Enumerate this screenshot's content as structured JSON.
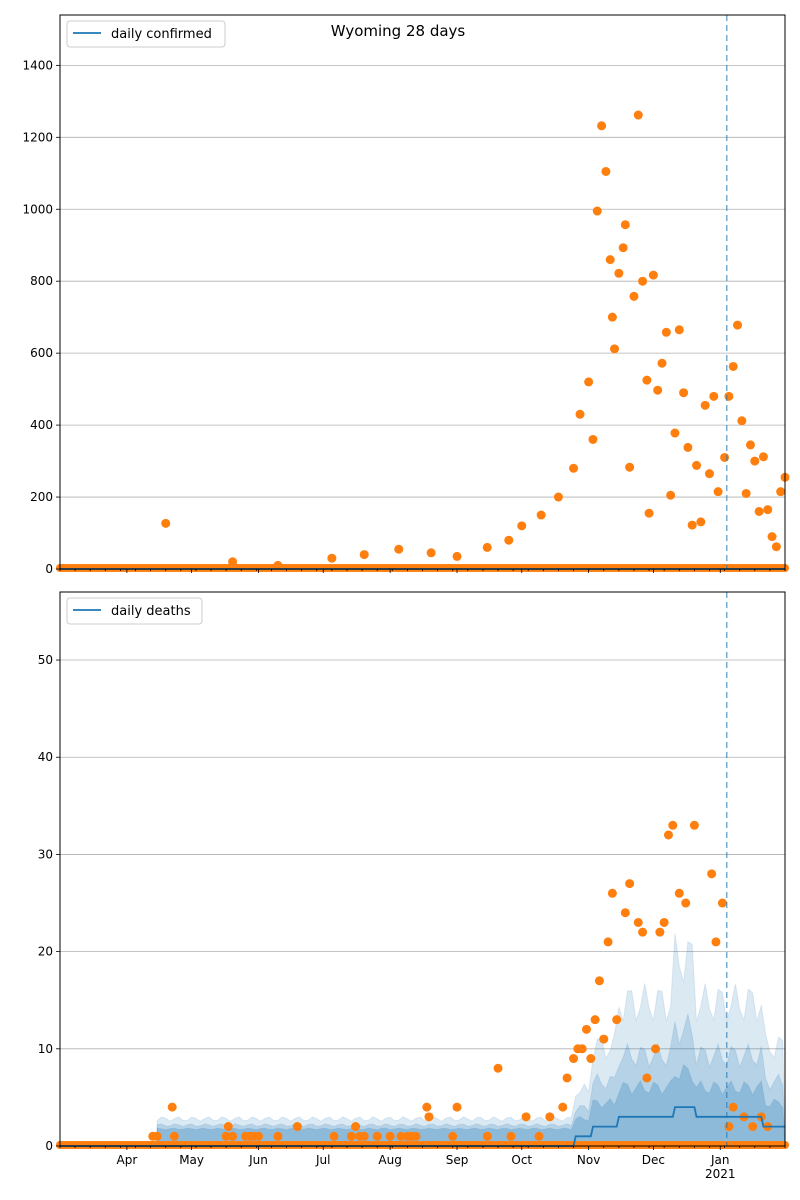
{
  "chart_data": [
    {
      "type": "scatter",
      "title": "Wyoming 28 days",
      "legend": {
        "placement": "top-left",
        "entries": [
          "daily confirmed"
        ]
      },
      "series": [
        {
          "name": "daily confirmed",
          "kind": "line",
          "color": "#1f77b4",
          "x": [
            "2020-03-01",
            "2021-01-31"
          ],
          "values": [
            0,
            0
          ]
        },
        {
          "kind": "scatter",
          "color": "#ff7f0e",
          "x": [
            "2020-04-19",
            "2020-05-20",
            "2020-06-10",
            "2020-07-05",
            "2020-07-20",
            "2020-08-05",
            "2020-08-20",
            "2020-09-01",
            "2020-09-15",
            "2020-09-25",
            "2020-10-01",
            "2020-10-10",
            "2020-10-18",
            "2020-10-25",
            "2020-10-28",
            "2020-11-01",
            "2020-11-03",
            "2020-11-05",
            "2020-11-07",
            "2020-11-09",
            "2020-11-11",
            "2020-11-12",
            "2020-11-13",
            "2020-11-15",
            "2020-11-17",
            "2020-11-18",
            "2020-11-20",
            "2020-11-22",
            "2020-11-24",
            "2020-11-26",
            "2020-11-28",
            "2020-11-29",
            "2020-12-01",
            "2020-12-03",
            "2020-12-05",
            "2020-12-07",
            "2020-12-09",
            "2020-12-11",
            "2020-12-13",
            "2020-12-15",
            "2020-12-17",
            "2020-12-19",
            "2020-12-21",
            "2020-12-23",
            "2020-12-25",
            "2020-12-27",
            "2020-12-29",
            "2020-12-31",
            "2021-01-03",
            "2021-01-05",
            "2021-01-07",
            "2021-01-09",
            "2021-01-11",
            "2021-01-13",
            "2021-01-15",
            "2021-01-17",
            "2021-01-19",
            "2021-01-21",
            "2021-01-23",
            "2021-01-25",
            "2021-01-27",
            "2021-01-29",
            "2021-01-31"
          ],
          "values": [
            127,
            20,
            10,
            30,
            40,
            55,
            45,
            35,
            60,
            80,
            120,
            150,
            200,
            280,
            430,
            520,
            360,
            995,
            1232,
            1105,
            860,
            700,
            612,
            822,
            893,
            957,
            283,
            758,
            1262,
            800,
            525,
            155,
            817,
            497,
            572,
            658,
            205,
            378,
            665,
            490,
            338,
            122,
            288,
            131,
            455,
            265,
            480,
            215,
            310,
            480,
            563,
            678,
            412,
            210,
            345,
            300,
            160,
            312,
            165,
            90,
            62,
            215,
            255
          ]
        }
      ],
      "x_tick_labels": [
        "Apr",
        "May",
        "Jun",
        "Jul",
        "Aug",
        "Sep",
        "Oct",
        "Nov",
        "Dec",
        "Jan\n2021"
      ],
      "y_tick_labels": [
        "0",
        "200",
        "400",
        "600",
        "800",
        "1000",
        "1200",
        "1400"
      ],
      "xlim": [
        "2020-03-01",
        "2021-01-31"
      ],
      "ylim": [
        0,
        1540
      ],
      "vline": "2021-01-04",
      "grid": "horizontal"
    },
    {
      "type": "scatter",
      "title": "",
      "legend": {
        "placement": "top-left",
        "entries": [
          "daily deaths"
        ]
      },
      "series": [
        {
          "name": "daily deaths",
          "kind": "line",
          "color": "#1f77b4",
          "x": [
            "2020-03-01",
            "2020-10-25",
            "2020-10-26",
            "2020-11-02",
            "2020-11-03",
            "2020-11-14",
            "2020-11-15",
            "2020-11-30",
            "2020-12-01",
            "2020-12-10",
            "2020-12-11",
            "2020-12-20",
            "2020-12-21",
            "2021-01-06",
            "2021-01-07",
            "2021-01-20",
            "2021-01-21",
            "2021-01-31"
          ],
          "values": [
            0,
            0,
            1,
            1,
            2,
            2,
            3,
            3,
            3,
            3,
            4,
            4,
            3,
            3,
            3,
            3,
            2,
            2
          ]
        },
        {
          "kind": "scatter",
          "color": "#ff7f0e",
          "x": [
            "2020-04-13",
            "2020-04-15",
            "2020-04-22",
            "2020-04-23",
            "2020-05-17",
            "2020-05-18",
            "2020-05-20",
            "2020-05-26",
            "2020-05-28",
            "2020-05-30",
            "2020-06-01",
            "2020-06-10",
            "2020-06-19",
            "2020-07-06",
            "2020-07-14",
            "2020-07-16",
            "2020-07-18",
            "2020-07-20",
            "2020-07-26",
            "2020-08-01",
            "2020-08-06",
            "2020-08-09",
            "2020-08-11",
            "2020-08-13",
            "2020-08-18",
            "2020-08-19",
            "2020-08-30",
            "2020-09-01",
            "2020-09-15",
            "2020-09-20",
            "2020-09-26",
            "2020-10-03",
            "2020-10-09",
            "2020-10-14",
            "2020-10-20",
            "2020-10-22",
            "2020-10-25",
            "2020-10-27",
            "2020-10-29",
            "2020-10-31",
            "2020-11-02",
            "2020-11-04",
            "2020-11-06",
            "2020-11-08",
            "2020-11-10",
            "2020-11-12",
            "2020-11-14",
            "2020-11-18",
            "2020-11-20",
            "2020-11-24",
            "2020-11-26",
            "2020-11-28",
            "2020-12-02",
            "2020-12-04",
            "2020-12-06",
            "2020-12-08",
            "2020-12-10",
            "2020-12-13",
            "2020-12-16",
            "2020-12-20",
            "2020-12-28",
            "2020-12-30",
            "2021-01-02",
            "2021-01-05",
            "2021-01-07",
            "2021-01-12",
            "2021-01-16",
            "2021-01-20",
            "2021-01-23"
          ],
          "values": [
            1,
            1,
            4,
            1,
            1,
            2,
            1,
            1,
            1,
            1,
            1,
            1,
            2,
            1,
            1,
            2,
            1,
            1,
            1,
            1,
            1,
            1,
            1,
            1,
            4,
            3,
            1,
            4,
            1,
            8,
            1,
            3,
            1,
            3,
            4,
            7,
            9,
            10,
            10,
            12,
            9,
            13,
            17,
            11,
            21,
            26,
            13,
            24,
            27,
            23,
            22,
            7,
            10,
            22,
            23,
            32,
            33,
            26,
            25,
            33,
            28,
            21,
            25,
            2,
            4,
            3,
            2,
            3,
            2
          ]
        },
        {
          "kind": "band",
          "color": "#1f77b4",
          "label": ""
        }
      ],
      "x_tick_labels": [
        "Apr",
        "May",
        "Jun",
        "Jul",
        "Aug",
        "Sep",
        "Oct",
        "Nov",
        "Dec",
        "Jan\n2021"
      ],
      "y_tick_labels": [
        "0",
        "10",
        "20",
        "30",
        "40",
        "50"
      ],
      "xlim": [
        "2020-03-01",
        "2021-01-31"
      ],
      "ylim": [
        0,
        57
      ],
      "vline": "2021-01-04",
      "grid": "horizontal"
    }
  ]
}
